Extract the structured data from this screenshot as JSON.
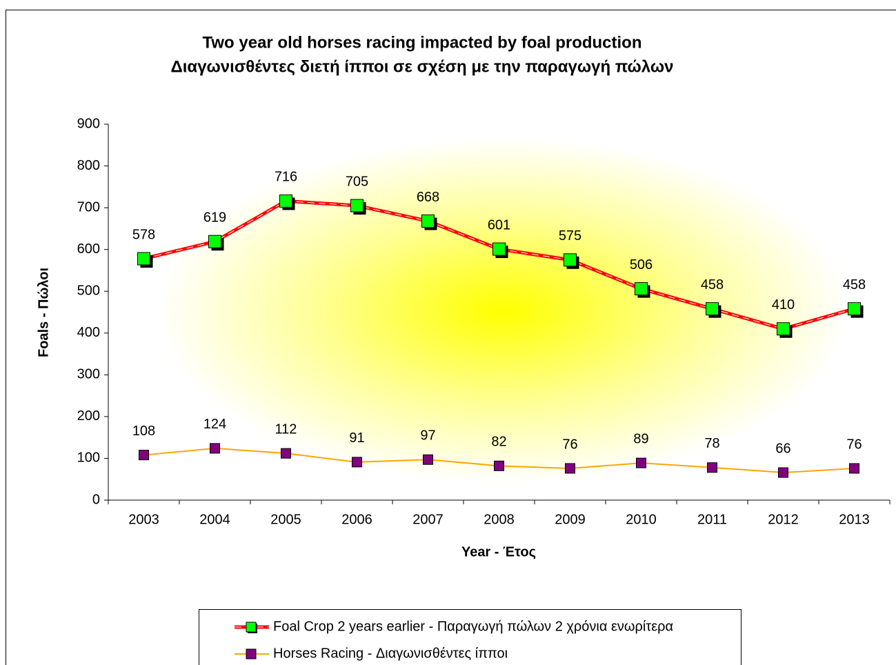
{
  "chart_data": {
    "type": "line",
    "title": "Two year old horses racing impacted by foal production",
    "subtitle": "Διαγωνισθέντες διετή ίπποι σε σχέση με την παραγωγή πώλων",
    "x_label": "Year - Έτος",
    "y_label": "Foals - Πώλοι",
    "categories": [
      "2003",
      "2004",
      "2005",
      "2006",
      "2007",
      "2008",
      "2009",
      "2010",
      "2011",
      "2012",
      "2013"
    ],
    "series": [
      {
        "name": "Foal Crop 2 years earlier - Παραγωγή πώλων 2 χρόνια ενωρίτερα",
        "color": "#ff0000",
        "marker_color": "#00ff00",
        "values": [
          578,
          619,
          716,
          705,
          668,
          601,
          575,
          506,
          458,
          410,
          458
        ]
      },
      {
        "name": "Horses Racing - Διαγωνισθέντες ίπποι",
        "color": "#ffa500",
        "marker_color": "#800080",
        "values": [
          108,
          124,
          112,
          91,
          97,
          82,
          76,
          89,
          78,
          66,
          76
        ]
      }
    ],
    "ylim": [
      0,
      900
    ],
    "yticks": [
      0,
      100,
      200,
      300,
      400,
      500,
      600,
      700,
      800,
      900
    ],
    "legend": "bottom"
  }
}
